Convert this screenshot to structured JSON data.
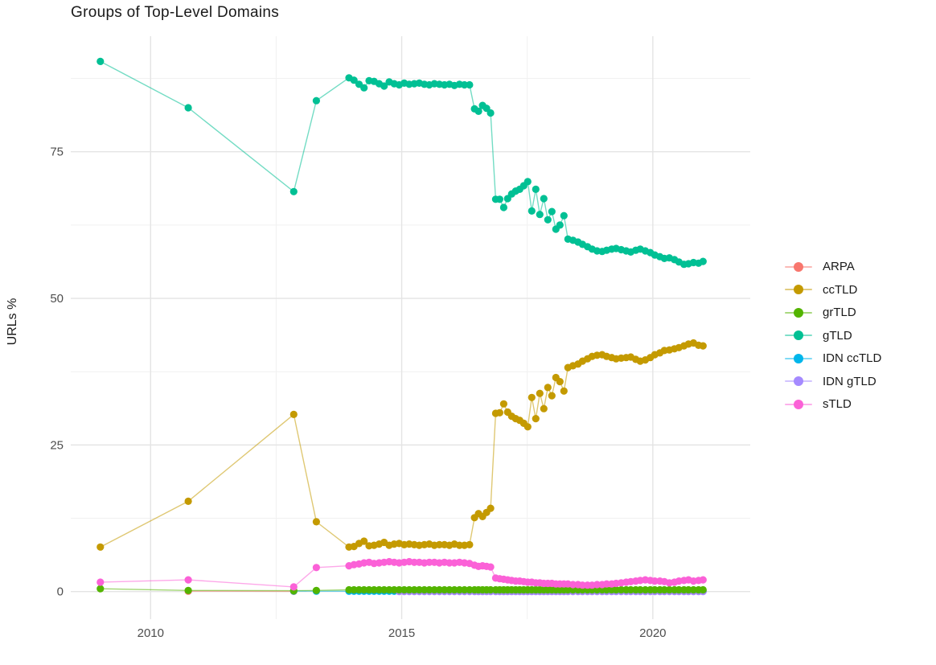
{
  "chart_data": {
    "type": "line",
    "title": "Groups of Top-Level Domains",
    "xlabel": "",
    "ylabel": "URLs %",
    "x_ticks": [
      2010,
      2015,
      2020
    ],
    "x_minor_ticks": [
      2012.5,
      2017.5
    ],
    "y_ticks": [
      0,
      25,
      50,
      75
    ],
    "y_minor_ticks": [
      12.5,
      37.5,
      62.5,
      87.5
    ],
    "x_range": [
      2008.41,
      2021.94
    ],
    "y_range": [
      -4.7,
      94.7
    ],
    "grid": true,
    "legend_position": "right",
    "x_dense": [
      2013.95,
      2014.05,
      2014.15,
      2014.25,
      2014.35,
      2014.45,
      2014.55,
      2014.65,
      2014.75,
      2014.85,
      2014.95,
      2015.05,
      2015.15,
      2015.25,
      2015.35,
      2015.45,
      2015.55,
      2015.65,
      2015.75,
      2015.85,
      2015.95,
      2016.05,
      2016.15,
      2016.25,
      2016.35,
      2016.45,
      2016.53,
      2016.61,
      2016.69,
      2016.77,
      2016.87,
      2016.95,
      2017.03,
      2017.11,
      2017.19,
      2017.27,
      2017.35,
      2017.43,
      2017.51,
      2017.59,
      2017.67,
      2017.75,
      2017.83,
      2017.91,
      2017.99,
      2018.07,
      2018.15,
      2018.23,
      2018.31,
      2018.41,
      2018.51,
      2018.6,
      2018.7,
      2018.79,
      2018.89,
      2018.99,
      2019.08,
      2019.18,
      2019.27,
      2019.37,
      2019.47,
      2019.56,
      2019.66,
      2019.75,
      2019.85,
      2019.95,
      2020.04,
      2020.14,
      2020.23,
      2020.33,
      2020.43,
      2020.52,
      2020.62,
      2020.71,
      2020.81,
      2020.91,
      2021.0
    ],
    "series": [
      {
        "name": "ARPA",
        "color": "#F8766D",
        "prefix": [
          [
            2010.75,
            0.07
          ],
          [
            2012.85,
            0.05
          ]
        ]
      },
      {
        "name": "ccTLD",
        "color": "#C49A00",
        "prefix": [
          [
            2009.0,
            7.6
          ],
          [
            2010.75,
            15.4
          ],
          [
            2012.85,
            30.2
          ],
          [
            2013.3,
            11.9
          ]
        ],
        "dense_y": [
          7.6,
          7.7,
          8.2,
          8.6,
          7.8,
          7.9,
          8.1,
          8.4,
          7.9,
          8.1,
          8.2,
          8.0,
          8.1,
          8.0,
          7.9,
          8.0,
          8.1,
          7.9,
          8.0,
          8.0,
          7.9,
          8.1,
          7.9,
          7.9,
          8.0,
          12.6,
          13.3,
          12.8,
          13.5,
          14.2,
          30.4,
          30.5,
          32.0,
          30.6,
          29.9,
          29.5,
          29.2,
          28.7,
          28.1,
          33.1,
          29.5,
          33.8,
          31.2,
          34.8,
          33.4,
          36.5,
          35.8,
          34.2,
          38.2,
          38.5,
          38.8,
          39.3,
          39.7,
          40.1,
          40.3,
          40.4,
          40.1,
          39.9,
          39.7,
          39.8,
          39.9,
          40.0,
          39.6,
          39.3,
          39.5,
          39.9,
          40.4,
          40.7,
          41.1,
          41.2,
          41.4,
          41.6,
          41.9,
          42.2,
          42.4,
          42.0,
          41.9
        ]
      },
      {
        "name": "grTLD",
        "color": "#53B400",
        "prefix": [
          [
            2009.0,
            0.5
          ],
          [
            2010.75,
            0.2
          ],
          [
            2012.85,
            0.15
          ],
          [
            2013.3,
            0.2
          ]
        ],
        "dense_y_const": 0.3
      },
      {
        "name": "gTLD",
        "color": "#00C094",
        "prefix": [
          [
            2009.0,
            90.4
          ],
          [
            2010.75,
            82.5
          ],
          [
            2012.85,
            68.2
          ],
          [
            2013.3,
            83.7
          ]
        ],
        "dense_y": [
          87.6,
          87.2,
          86.5,
          85.9,
          87.1,
          87.0,
          86.6,
          86.2,
          86.9,
          86.6,
          86.4,
          86.7,
          86.5,
          86.6,
          86.7,
          86.5,
          86.4,
          86.6,
          86.5,
          86.4,
          86.5,
          86.3,
          86.5,
          86.4,
          86.4,
          82.3,
          81.9,
          82.9,
          82.4,
          81.6,
          66.9,
          66.9,
          65.5,
          67.0,
          67.8,
          68.3,
          68.6,
          69.2,
          69.9,
          64.9,
          68.6,
          64.3,
          67.0,
          63.4,
          64.8,
          61.8,
          62.5,
          64.1,
          60.1,
          59.9,
          59.6,
          59.2,
          58.8,
          58.4,
          58.1,
          58.0,
          58.2,
          58.4,
          58.5,
          58.3,
          58.1,
          57.9,
          58.2,
          58.4,
          58.1,
          57.8,
          57.4,
          57.1,
          56.8,
          56.9,
          56.6,
          56.2,
          55.8,
          55.9,
          56.1,
          56.0,
          56.3
        ]
      },
      {
        "name": "IDN ccTLD",
        "color": "#00B6EB",
        "prefix": [
          [
            2012.85,
            0.1
          ],
          [
            2013.3,
            0.07
          ]
        ],
        "dense_y_const": 0.06
      },
      {
        "name": "IDN gTLD",
        "color": "#A58AFF",
        "dense_start": 10,
        "dense_y_const": 0.02
      },
      {
        "name": "sTLD",
        "color": "#FB61D7",
        "prefix": [
          [
            2009.0,
            1.6
          ],
          [
            2010.75,
            2.0
          ],
          [
            2012.85,
            0.8
          ],
          [
            2013.3,
            4.1
          ]
        ],
        "dense_y": [
          4.4,
          4.6,
          4.7,
          4.9,
          5.0,
          4.8,
          4.9,
          5.0,
          5.1,
          5.0,
          4.9,
          5.0,
          5.1,
          5.0,
          5.0,
          4.9,
          5.0,
          5.0,
          4.9,
          5.0,
          4.9,
          4.9,
          5.0,
          4.9,
          4.8,
          4.5,
          4.3,
          4.4,
          4.3,
          4.2,
          2.3,
          2.2,
          2.1,
          2.0,
          1.9,
          1.8,
          1.8,
          1.7,
          1.6,
          1.6,
          1.5,
          1.5,
          1.4,
          1.4,
          1.4,
          1.3,
          1.3,
          1.3,
          1.3,
          1.2,
          1.2,
          1.1,
          1.1,
          1.1,
          1.2,
          1.2,
          1.3,
          1.3,
          1.4,
          1.5,
          1.6,
          1.7,
          1.8,
          1.9,
          2.0,
          1.9,
          1.8,
          1.8,
          1.7,
          1.5,
          1.6,
          1.8,
          1.9,
          2.0,
          1.8,
          1.9,
          2.0
        ]
      }
    ]
  }
}
